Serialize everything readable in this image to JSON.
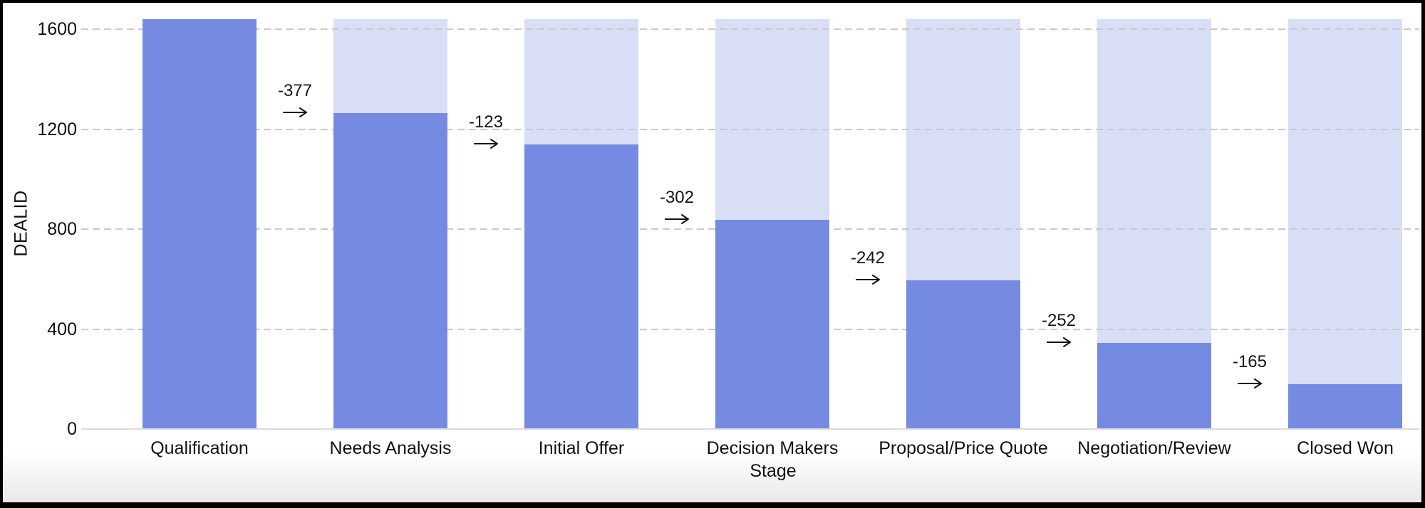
{
  "chart_data": {
    "type": "bar",
    "subtype": "funnel",
    "title": "",
    "xlabel": "Stage",
    "ylabel": "DEALID",
    "categories": [
      "Qualification",
      "Needs Analysis",
      "Initial Offer",
      "Decision Makers",
      "Proposal/Price Quote",
      "Negotiation/Review",
      "Closed Won"
    ],
    "values": [
      1640,
      1263,
      1140,
      838,
      596,
      344,
      179
    ],
    "drop_labels": [
      "-377",
      "-123",
      "-302",
      "-242",
      "-252",
      "-165"
    ],
    "drops": [
      -377,
      -123,
      -302,
      -242,
      -252,
      -165
    ],
    "y_ticks": [
      0,
      400,
      800,
      1200,
      1600
    ],
    "ylim": [
      0,
      1640
    ],
    "grid": true,
    "legend": false,
    "colors": {
      "bar": "#758BE2",
      "ghost_bar": "#D8DEF6",
      "gridline": "#C9C9C9",
      "axis_line": "#DCDCDC",
      "text": "#111111",
      "annotation": "#141414"
    }
  }
}
